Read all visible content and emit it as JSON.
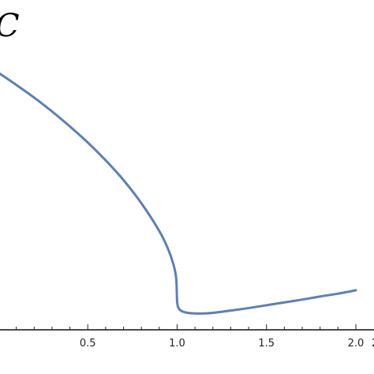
{
  "chart_data": {
    "type": "line",
    "title": "",
    "xlabel": "",
    "ylabel": "C",
    "xlim": [
      0,
      2.06
    ],
    "ylim": [
      0,
      1.0
    ],
    "x_ticks": [
      "0.5",
      "1.0",
      "1.5",
      "2.0"
    ],
    "x_tick_values": [
      0.5,
      1.0,
      1.5,
      2.0
    ],
    "grid": false,
    "line_color": "#5f7fb0",
    "series": [
      {
        "x": [
          0.0,
          0.1,
          0.2,
          0.3,
          0.4,
          0.5,
          0.6,
          0.7,
          0.8,
          0.9,
          0.95,
          0.98,
          0.995,
          1.0,
          1.01,
          1.03,
          1.06,
          1.1,
          1.15,
          1.2,
          1.3,
          1.4,
          1.5,
          1.6,
          1.7,
          1.8,
          1.9,
          2.0
        ],
        "y": [
          0.91,
          0.867,
          0.822,
          0.773,
          0.72,
          0.663,
          0.6,
          0.53,
          0.448,
          0.35,
          0.285,
          0.23,
          0.18,
          0.1,
          0.075,
          0.065,
          0.06,
          0.058,
          0.058,
          0.06,
          0.068,
          0.077,
          0.087,
          0.097,
          0.107,
          0.118,
          0.128,
          0.14
        ]
      }
    ]
  }
}
